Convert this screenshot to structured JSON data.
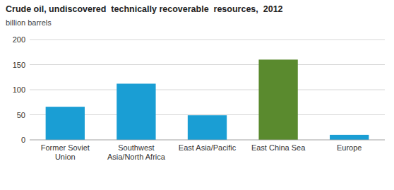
{
  "chart_data": {
    "type": "bar",
    "title": "Crude oil, undiscovered  technically recoverable  resources,  2012",
    "subtitle": "billion barrels",
    "categories": [
      "Former Soviet\nUnion",
      "Southwest\nAsia/North Africa",
      "East Asia/Pacific",
      "East China Sea",
      "Europe"
    ],
    "values": [
      66,
      112,
      49,
      160,
      10
    ],
    "colors": [
      "#1a9ed4",
      "#1a9ed4",
      "#1a9ed4",
      "#5a8a2e",
      "#1a9ed4"
    ],
    "ylim": [
      0,
      200
    ],
    "yticks": [
      0,
      50,
      100,
      150,
      200
    ],
    "grid": true
  }
}
